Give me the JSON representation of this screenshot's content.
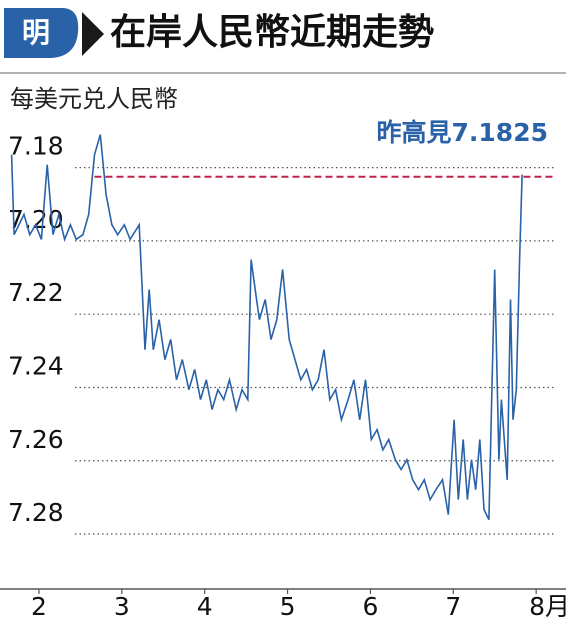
{
  "chart_data": {
    "type": "line",
    "logo": "明",
    "title": "在岸人民幣近期走勢",
    "y_label": "每美元兑人民幣",
    "annotation": "昨高見7.1825",
    "reference_line": {
      "value": 7.1825,
      "color": "#c0204a"
    },
    "y_inverted": true,
    "grid": true,
    "xlim": [
      1.53,
      8.36
    ],
    "xticks": [
      2,
      3,
      4,
      5,
      6,
      7,
      {
        "value": 8,
        "label": "8月"
      }
    ],
    "ylim": [
      7.155,
      7.295
    ],
    "yticks": [
      7.18,
      {
        "value": 7.2,
        "label": "7.20"
      },
      7.22,
      7.24,
      7.26,
      7.28
    ],
    "series": [
      {
        "color": "#2a62a8",
        "x": [
          1.67,
          1.7,
          1.82,
          1.89,
          1.96,
          2.03,
          2.1,
          2.17,
          2.24,
          2.31,
          2.38,
          2.45,
          2.53,
          2.6,
          2.67,
          2.74,
          2.81,
          2.88,
          2.95,
          3.03,
          3.1,
          3.21,
          3.28,
          3.33,
          3.38,
          3.45,
          3.52,
          3.59,
          3.66,
          3.73,
          3.81,
          3.88,
          3.95,
          4.02,
          4.09,
          4.16,
          4.23,
          4.3,
          4.38,
          4.45,
          4.52,
          4.56,
          4.61,
          4.66,
          4.73,
          4.8,
          4.87,
          4.94,
          5.02,
          5.09,
          5.16,
          5.23,
          5.3,
          5.37,
          5.44,
          5.51,
          5.58,
          5.65,
          5.73,
          5.8,
          5.87,
          5.94,
          6.01,
          6.08,
          6.15,
          6.22,
          6.3,
          6.37,
          6.44,
          6.51,
          6.58,
          6.65,
          6.72,
          6.79,
          6.87,
          6.94,
          7.01,
          7.06,
          7.12,
          7.17,
          7.22,
          7.27,
          7.32,
          7.37,
          7.43,
          7.5,
          7.55,
          7.58,
          7.65,
          7.69,
          7.72,
          7.76,
          7.8,
          7.83
        ],
        "values": [
          7.1765,
          7.1983,
          7.1928,
          7.1983,
          7.1956,
          7.1996,
          7.1792,
          7.1983,
          7.1928,
          7.1996,
          7.1956,
          7.1996,
          7.1983,
          7.1928,
          7.1765,
          7.171,
          7.1874,
          7.1956,
          7.1983,
          7.1956,
          7.1996,
          7.1956,
          7.2297,
          7.2133,
          7.2297,
          7.2215,
          7.2324,
          7.2269,
          7.2379,
          7.2324,
          7.2406,
          7.2351,
          7.2433,
          7.2379,
          7.246,
          7.2406,
          7.2433,
          7.2379,
          7.246,
          7.2406,
          7.2433,
          7.2051,
          7.2133,
          7.2215,
          7.216,
          7.2269,
          7.2215,
          7.2078,
          7.2269,
          7.2324,
          7.2379,
          7.2351,
          7.2406,
          7.2379,
          7.2297,
          7.2433,
          7.2406,
          7.2488,
          7.2433,
          7.2379,
          7.2488,
          7.2379,
          7.2542,
          7.2515,
          7.257,
          7.2542,
          7.2597,
          7.2624,
          7.2597,
          7.2652,
          7.2679,
          7.2652,
          7.2706,
          7.2679,
          7.2652,
          7.2747,
          7.2488,
          7.2706,
          7.2542,
          7.2706,
          7.2597,
          7.2679,
          7.2542,
          7.2733,
          7.2761,
          7.2078,
          7.2597,
          7.2433,
          7.2652,
          7.216,
          7.2488,
          7.2406,
          7.2051,
          7.1819
        ]
      }
    ]
  }
}
